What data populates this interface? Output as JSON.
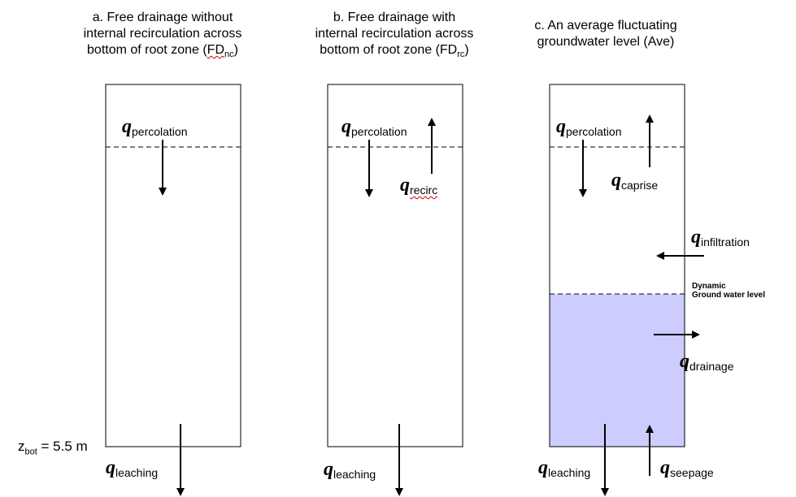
{
  "titles": {
    "a": {
      "line1": "a. Free drainage without",
      "line2": "internal recirculation across",
      "line3_pre": "bottom of root zone (FD",
      "line3_sub": "nc",
      "line3_post": ")"
    },
    "b": {
      "line1": "b. Free drainage with",
      "line2": "internal recirculation across",
      "line3_pre": "bottom of root zone (FD",
      "line3_sub": "rc",
      "line3_post": ")"
    },
    "c": {
      "line1": "c. An average fluctuating",
      "line2": "groundwater level (Ave)"
    }
  },
  "symbol": "q",
  "labels": {
    "percolation": "percolation",
    "recirc": "recirc",
    "caprise": "caprise",
    "infiltration": "infiltration",
    "drainage": "drainage",
    "leaching": "leaching",
    "seepage": "seepage"
  },
  "gw_label": {
    "line1": "Dynamic",
    "line2": "Ground water level"
  },
  "zbot": {
    "z": "z",
    "sub": "bot",
    "value": " = 5.5 m"
  },
  "colors": {
    "groundwater_fill": "#ccccff",
    "misspelling_underline": "#d00000"
  }
}
